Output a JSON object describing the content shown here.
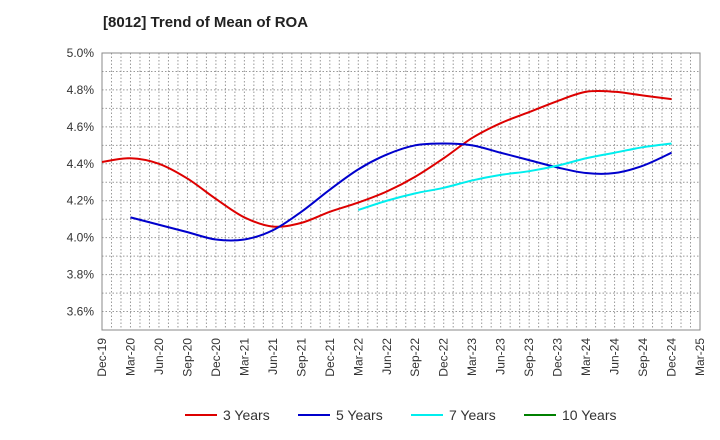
{
  "chart_data": {
    "type": "line",
    "title": "[8012]  Trend of Mean of ROA",
    "xlabel": "",
    "ylabel": "",
    "categories": [
      "Dec-19",
      "Mar-20",
      "Jun-20",
      "Sep-20",
      "Dec-20",
      "Mar-21",
      "Jun-21",
      "Sep-21",
      "Dec-21",
      "Mar-22",
      "Jun-22",
      "Sep-22",
      "Dec-22",
      "Mar-23",
      "Jun-23",
      "Sep-23",
      "Dec-23",
      "Mar-24",
      "Jun-24",
      "Sep-24",
      "Dec-24",
      "Mar-25"
    ],
    "y_ticks": [
      "3.6%",
      "3.8%",
      "4.0%",
      "4.2%",
      "4.4%",
      "4.6%",
      "4.8%",
      "5.0%"
    ],
    "ylim": [
      3.5,
      5.0
    ],
    "grid": true,
    "legend_position": "bottom",
    "series": [
      {
        "name": "3 Years",
        "color": "#dd0000",
        "values": [
          4.41,
          4.43,
          4.4,
          4.32,
          4.21,
          4.11,
          4.06,
          4.08,
          4.14,
          4.19,
          4.25,
          4.33,
          4.43,
          4.54,
          4.62,
          4.68,
          4.74,
          4.79,
          4.79,
          4.77,
          4.75,
          null
        ]
      },
      {
        "name": "5 Years",
        "color": "#0000cc",
        "values": [
          null,
          4.11,
          4.07,
          4.03,
          3.99,
          3.99,
          4.04,
          4.14,
          4.26,
          4.37,
          4.45,
          4.5,
          4.51,
          4.5,
          4.46,
          4.42,
          4.38,
          4.35,
          4.35,
          4.39,
          4.46,
          null
        ]
      },
      {
        "name": "7 Years",
        "color": "#00eeee",
        "values": [
          null,
          null,
          null,
          null,
          null,
          null,
          null,
          null,
          null,
          4.15,
          4.2,
          4.24,
          4.27,
          4.31,
          4.34,
          4.36,
          4.39,
          4.43,
          4.46,
          4.49,
          4.51,
          null
        ]
      },
      {
        "name": "10 Years",
        "color": "#008000",
        "values": [
          null,
          null,
          null,
          null,
          null,
          null,
          null,
          null,
          null,
          null,
          null,
          null,
          null,
          null,
          null,
          null,
          null,
          null,
          null,
          null,
          null,
          null
        ]
      }
    ]
  }
}
